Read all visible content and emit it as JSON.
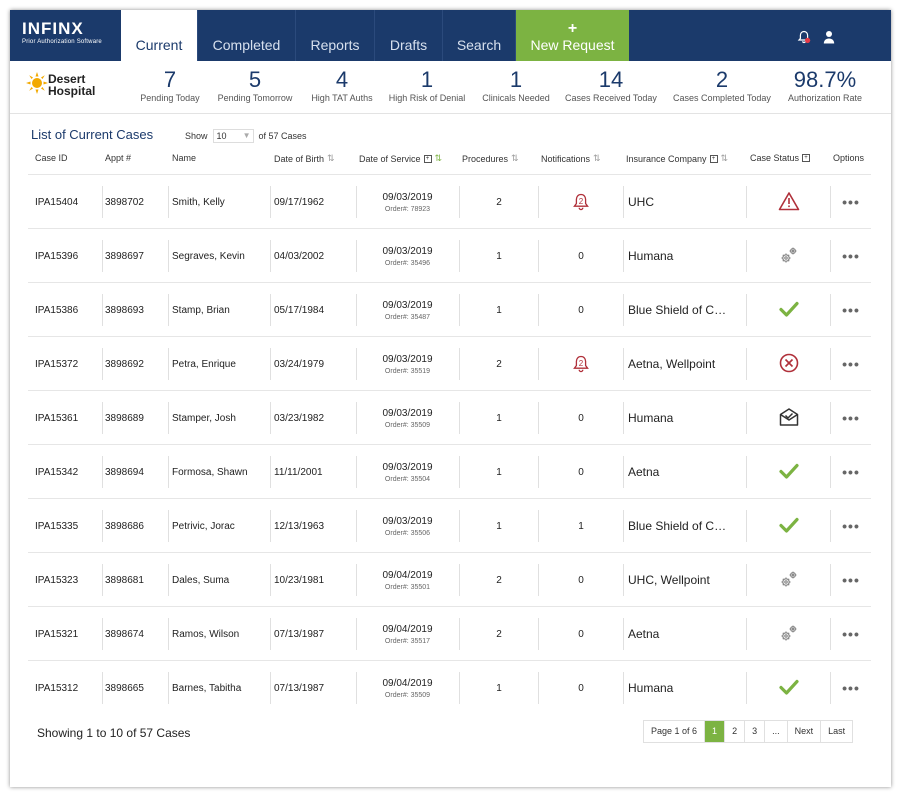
{
  "app": {
    "brand": "INFINX",
    "tagline": "Prior Authorization Software"
  },
  "nav": {
    "tabs": [
      "Current",
      "Completed",
      "Reports",
      "Drafts",
      "Search"
    ],
    "new_request": "New Request",
    "new_request_icon": "plus-icon"
  },
  "header_icons": [
    "bell-alert-icon",
    "user-icon"
  ],
  "hospital": {
    "line1": "Desert",
    "line2": "Hospital"
  },
  "stats": [
    {
      "value": "7",
      "label": "Pending Today"
    },
    {
      "value": "5",
      "label": "Pending Tomorrow"
    },
    {
      "value": "4",
      "label": "High TAT Auths"
    },
    {
      "value": "1",
      "label": "High Risk of Denial"
    },
    {
      "value": "1",
      "label": "Clinicals Needed"
    },
    {
      "value": "14",
      "label": "Cases Received Today"
    },
    {
      "value": "2",
      "label": "Cases Completed Today"
    },
    {
      "value": "98.7%",
      "label": "Authorization Rate"
    }
  ],
  "list": {
    "title": "List of Current Cases",
    "show_label": "Show",
    "show_value": "10",
    "of_label": "of 57 Cases"
  },
  "columns": [
    "Case ID",
    "Appt #",
    "Name",
    "Date of Birth",
    "Date of Service",
    "Procedures",
    "Notifications",
    "Insurance Company",
    "Case Status",
    "Options"
  ],
  "rows": [
    {
      "case_id": "IPA15404",
      "appt": "3898702",
      "name": "Smith, Kelly",
      "dob": "09/17/1962",
      "dos": "09/03/2019",
      "order": "Order#: 78923",
      "procedures": "2",
      "notifications": "2",
      "notif_alert": true,
      "insurance": "UHC",
      "status": "alert-icon"
    },
    {
      "case_id": "IPA15396",
      "appt": "3898697",
      "name": "Segraves, Kevin",
      "dob": "04/03/2002",
      "dos": "09/03/2019",
      "order": "Order#: 35496",
      "procedures": "1",
      "notifications": "0",
      "notif_alert": false,
      "insurance": "Humana",
      "status": "gears-icon"
    },
    {
      "case_id": "IPA15386",
      "appt": "3898693",
      "name": "Stamp, Brian",
      "dob": "05/17/1984",
      "dos": "09/03/2019",
      "order": "Order#: 35487",
      "procedures": "1",
      "notifications": "0",
      "notif_alert": false,
      "insurance": "Blue Shield of Ca...",
      "status": "check-icon"
    },
    {
      "case_id": "IPA15372",
      "appt": "3898692",
      "name": "Petra, Enrique",
      "dob": "03/24/1979",
      "dos": "09/03/2019",
      "order": "Order#: 35519",
      "procedures": "2",
      "notifications": "2",
      "notif_alert": true,
      "insurance": "Aetna, Wellpoint",
      "status": "cancel-icon"
    },
    {
      "case_id": "IPA15361",
      "appt": "3898689",
      "name": "Stamper, Josh",
      "dob": "03/23/1982",
      "dos": "09/03/2019",
      "order": "Order#: 35509",
      "procedures": "1",
      "notifications": "0",
      "notif_alert": false,
      "insurance": "Humana",
      "status": "mail-check-icon"
    },
    {
      "case_id": "IPA15342",
      "appt": "3898694",
      "name": "Formosa, Shawn",
      "dob": "11/11/2001",
      "dos": "09/03/2019",
      "order": "Order#: 35504",
      "procedures": "1",
      "notifications": "0",
      "notif_alert": false,
      "insurance": "Aetna",
      "status": "check-icon"
    },
    {
      "case_id": "IPA15335",
      "appt": "3898686",
      "name": "Petrivic, Jorac",
      "dob": "12/13/1963",
      "dos": "09/03/2019",
      "order": "Order#: 35506",
      "procedures": "1",
      "notifications": "1",
      "notif_alert": false,
      "insurance": "Blue Shield of Ca...",
      "status": "check-icon"
    },
    {
      "case_id": "IPA15323",
      "appt": "3898681",
      "name": "Dales, Suma",
      "dob": "10/23/1981",
      "dos": "09/04/2019",
      "order": "Order#: 35501",
      "procedures": "2",
      "notifications": "0",
      "notif_alert": false,
      "insurance": "UHC, Wellpoint",
      "status": "gears-icon"
    },
    {
      "case_id": "IPA15321",
      "appt": "3898674",
      "name": "Ramos, Wilson",
      "dob": "07/13/1987",
      "dos": "09/04/2019",
      "order": "Order#: 35517",
      "procedures": "2",
      "notifications": "0",
      "notif_alert": false,
      "insurance": "Aetna",
      "status": "gears-icon"
    },
    {
      "case_id": "IPA15312",
      "appt": "3898665",
      "name": "Barnes, Tabitha",
      "dob": "07/13/1987",
      "dos": "09/04/2019",
      "order": "Order#: 35509",
      "procedures": "1",
      "notifications": "0",
      "notif_alert": false,
      "insurance": "Humana",
      "status": "check-icon"
    }
  ],
  "options_icon": "more-dots-icon",
  "footer": {
    "showing": "Showing 1 to 10 of 57 Cases",
    "page_info": "Page 1 of 6",
    "pages": [
      "1",
      "2",
      "3",
      "..."
    ],
    "next": "Next",
    "last": "Last"
  },
  "colors": {
    "navy": "#1b3a6b",
    "green": "#7cb342",
    "alert_red": "#b0303a"
  }
}
